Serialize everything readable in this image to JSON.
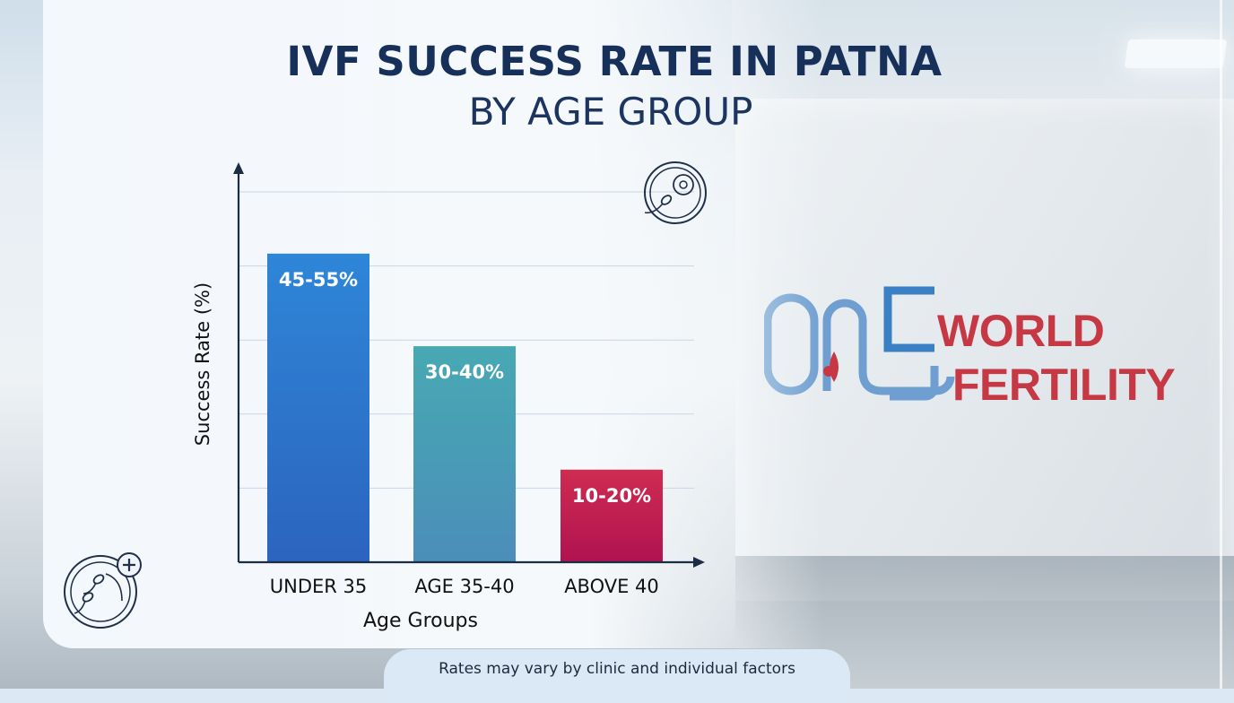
{
  "page": {
    "title_line1": "IVF SUCCESS RATE IN PATNA",
    "title_line2": "BY AGE GROUP",
    "footer_note": "Rates may vary by clinic and individual factors"
  },
  "logo": {
    "word1": "WORLD",
    "word2": "FERTILITY",
    "mark_text": "ONE",
    "brand_red": "#c53844",
    "brand_blue": "#3b7fc4"
  },
  "icons": [
    "sperm-egg-icon",
    "sperm-plus-icon"
  ],
  "chart_data": {
    "type": "bar",
    "title": "IVF SUCCESS RATE IN PATNA BY AGE GROUP",
    "xlabel": "Age Groups",
    "ylabel": "Success Rate (%)",
    "ylim": [
      0,
      60
    ],
    "grid": true,
    "categories": [
      "UNDER 35",
      "AGE 35-40",
      "ABOVE 40"
    ],
    "values": [
      50,
      35,
      15
    ],
    "data_labels": [
      "45-55%",
      "30-40%",
      "10-20%"
    ],
    "colors": [
      [
        "#2e86d8",
        "#2c64bf"
      ],
      [
        "#47a9b3",
        "#4b8eb9"
      ],
      [
        "#cf2c52",
        "#b0124f"
      ]
    ]
  }
}
